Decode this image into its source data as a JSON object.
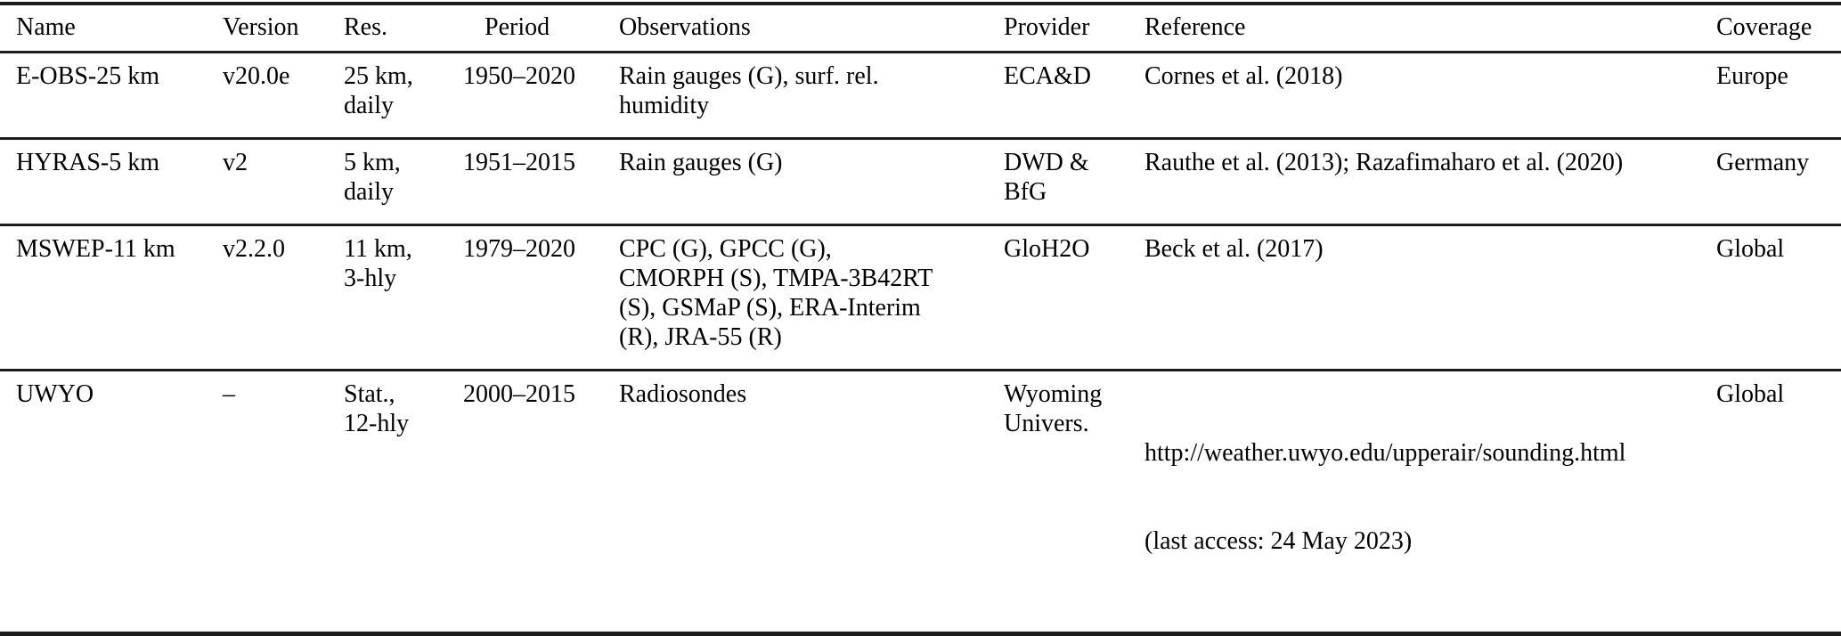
{
  "table": {
    "background": "#ffffff",
    "text_color": "#000000",
    "rule_color": "#1c1c1c",
    "headers": [
      "Name",
      "Version",
      "Res.",
      "Period",
      "Observations",
      "Provider",
      "Reference",
      "Coverage"
    ],
    "rows": [
      {
        "name": "E-OBS-25 km",
        "version": "v20.0e",
        "res": "25 km,\ndaily",
        "period": "1950–2020",
        "observations": "Rain gauges (G), surf. rel.\nhumidity",
        "provider": "ECA&D",
        "reference": "Cornes et al. (2018)",
        "coverage": "Europe"
      },
      {
        "name": "HYRAS-5 km",
        "version": "v2",
        "res": "5 km,\ndaily",
        "period": "1951–2015",
        "observations": "Rain gauges (G)",
        "provider": "DWD &\nBfG",
        "reference": "Rauthe et al. (2013); Razafimaharo et al. (2020)",
        "coverage": "Germany"
      },
      {
        "name": "MSWEP-11 km",
        "version": "v2.2.0",
        "res": "11 km,\n3-hly",
        "period": "1979–2020",
        "observations": "CPC (G), GPCC (G),\nCMORPH (S), TMPA-3B42RT\n(S), GSMaP (S), ERA-Interim\n(R), JRA-55 (R)",
        "provider": "GloH2O",
        "reference": "Beck et al. (2017)",
        "coverage": "Global"
      },
      {
        "name": "UWYO",
        "version": "–",
        "res": "Stat.,\n12-hly",
        "period": "2000–2015",
        "observations": "Radiosondes",
        "provider": "Wyoming\nUnivers.",
        "reference_url": "http://weather.uwyo.edu/upperair/sounding.html",
        "reference_note": "(last access: 24 May 2023)",
        "coverage": "Global"
      }
    ]
  }
}
